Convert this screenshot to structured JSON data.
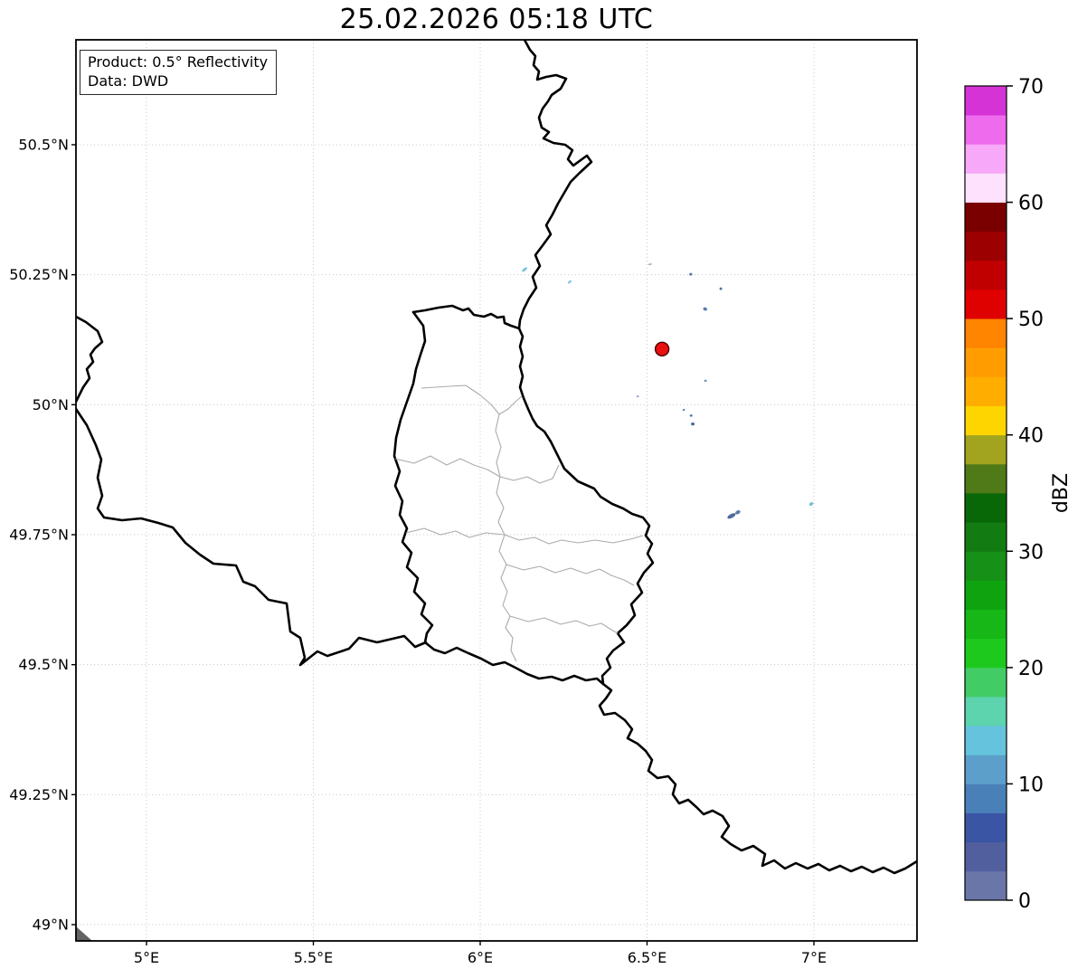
{
  "title": "25.02.2026 05:18 UTC",
  "annotation": {
    "line1": "Product: 0.5° Reflectivity",
    "line2": "Data: DWD"
  },
  "map": {
    "extent": {
      "lon_min": 4.7886,
      "lon_max": 7.3089,
      "lat_min": 48.9687,
      "lat_max": 50.7018
    },
    "x_ticks": [
      {
        "label": "5°E",
        "lon": 5.0
      },
      {
        "label": "5.5°E",
        "lon": 5.5
      },
      {
        "label": "6°E",
        "lon": 6.0
      },
      {
        "label": "6.5°E",
        "lon": 6.5
      },
      {
        "label": "7°E",
        "lon": 7.0
      }
    ],
    "y_ticks": [
      {
        "label": "50.5°N",
        "lat": 50.5
      },
      {
        "label": "50.25°N",
        "lat": 50.25
      },
      {
        "label": "50°N",
        "lat": 50.0
      },
      {
        "label": "49.75°N",
        "lat": 49.75
      },
      {
        "label": "49.5°N",
        "lat": 49.5
      },
      {
        "label": "49.25°N",
        "lat": 49.25
      },
      {
        "label": "49°N",
        "lat": 49.0
      }
    ],
    "grid_color": "#c9c9c9",
    "radar_marker": {
      "lon": 6.545,
      "lat": 50.107,
      "color": "#e81010",
      "edge_color": "#4d0000",
      "radius": 7.5
    },
    "echoes": [
      {
        "lon": 6.133,
        "lat": 50.26,
        "w": 7,
        "h": 3,
        "rot": -38,
        "color": "#7fc2de"
      },
      {
        "lon": 6.268,
        "lat": 50.236,
        "w": 5,
        "h": 2.5,
        "rot": -40,
        "color": "#8ac6e2"
      },
      {
        "lon": 6.509,
        "lat": 50.27,
        "w": 4,
        "h": 1.8,
        "rot": -10,
        "color": "#9facc6"
      },
      {
        "lon": 6.631,
        "lat": 50.251,
        "w": 3.5,
        "h": 3,
        "rot": 0,
        "color": "#5a7cae"
      },
      {
        "lon": 6.721,
        "lat": 50.223,
        "w": 3,
        "h": 3,
        "rot": 0,
        "color": "#56749f"
      },
      {
        "lon": 6.674,
        "lat": 50.184,
        "w": 4.5,
        "h": 3.5,
        "rot": 20,
        "color": "#5a7cae"
      },
      {
        "lon": 6.472,
        "lat": 50.016,
        "w": 3,
        "h": 2,
        "rot": 0,
        "color": "#93a6c6"
      },
      {
        "lon": 6.675,
        "lat": 50.046,
        "w": 3,
        "h": 2.5,
        "rot": 0,
        "color": "#6e93bd"
      },
      {
        "lon": 6.61,
        "lat": 49.99,
        "w": 3,
        "h": 2,
        "rot": -30,
        "color": "#5a7cae"
      },
      {
        "lon": 6.632,
        "lat": 49.979,
        "w": 3,
        "h": 2.5,
        "rot": 0,
        "color": "#4a6fa5"
      },
      {
        "lon": 6.637,
        "lat": 49.963,
        "w": 4,
        "h": 3.5,
        "rot": 0,
        "color": "#4a6fa5"
      },
      {
        "lon": 6.753,
        "lat": 49.786,
        "w": 10,
        "h": 4.5,
        "rot": -28,
        "color": "#4e689e"
      },
      {
        "lon": 6.772,
        "lat": 49.793,
        "w": 6,
        "h": 4,
        "rot": -28,
        "color": "#5a7cae"
      },
      {
        "lon": 6.992,
        "lat": 49.809,
        "w": 5,
        "h": 3.5,
        "rot": -35,
        "color": "#74c0de"
      }
    ]
  },
  "colorbar": {
    "label": "dBZ",
    "vmin": 0,
    "vmax": 70,
    "segment_step": 2.5,
    "ticks": [
      0,
      10,
      20,
      30,
      40,
      50,
      60,
      70
    ],
    "colors_bottom_to_top": [
      "#6b76a8",
      "#525f9f",
      "#3b55a5",
      "#4a80b8",
      "#5c9fca",
      "#65c3dd",
      "#5dd3ae",
      "#42cc66",
      "#1ec91e",
      "#16b716",
      "#0fa30f",
      "#169016",
      "#127c12",
      "#086808",
      "#4f7a17",
      "#a2a41f",
      "#ffd500",
      "#ffae00",
      "#ff9d00",
      "#ff8400",
      "#df0000",
      "#c00000",
      "#9c0000",
      "#7a0000",
      "#fde1fd",
      "#f8a8f8",
      "#ee6bee",
      "#d633d6"
    ]
  }
}
